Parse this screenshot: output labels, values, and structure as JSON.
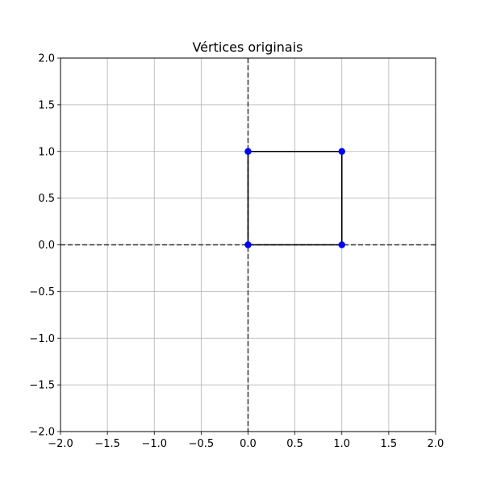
{
  "chart_data": {
    "type": "line",
    "title": "Vértices originais",
    "xlabel": "",
    "ylabel": "",
    "xlim": [
      -2.0,
      2.0
    ],
    "ylim": [
      -2.0,
      2.0
    ],
    "grid": true,
    "x_ticks": [
      -2.0,
      -1.5,
      -1.0,
      -0.5,
      0.0,
      0.5,
      1.0,
      1.5,
      2.0
    ],
    "y_ticks": [
      -2.0,
      -1.5,
      -1.0,
      -0.5,
      0.0,
      0.5,
      1.0,
      1.5,
      2.0
    ],
    "x_tick_labels": [
      "−2.0",
      "−1.5",
      "−1.0",
      "−0.5",
      "0.0",
      "0.5",
      "1.0",
      "1.5",
      "2.0"
    ],
    "y_tick_labels": [
      "−2.0",
      "−1.5",
      "−1.0",
      "−0.5",
      "0.0",
      "0.5",
      "1.0",
      "1.5",
      "2.0"
    ],
    "reference_lines": {
      "x": 0,
      "y": 0,
      "style": "dashed"
    },
    "series": [
      {
        "x": [
          0,
          1,
          1,
          0,
          0
        ],
        "y": [
          0,
          0,
          1,
          1,
          0
        ],
        "color": "#000000",
        "marker_color": "#0000ff"
      }
    ],
    "vertices": [
      [
        0,
        0
      ],
      [
        1,
        0
      ],
      [
        1,
        1
      ],
      [
        0,
        1
      ]
    ]
  }
}
